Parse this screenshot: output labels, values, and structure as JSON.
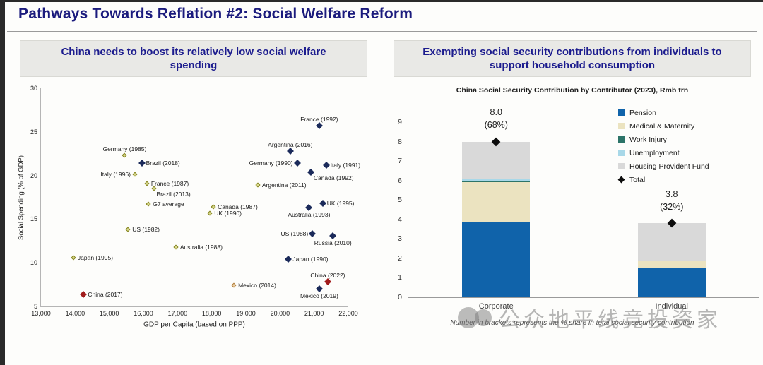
{
  "slide": {
    "title": "Pathways Towards Reflation #2: Social Welfare Reform",
    "footnote": "Number in brackets represents the % share in total social security contribution",
    "watermark": "公众地平线竞投资家"
  },
  "panels": {
    "left": {
      "header": "China needs to boost its relatively low social welfare spending"
    },
    "right": {
      "header": "Exempting social security contributions from individuals to support household consumption"
    }
  },
  "colors": {
    "title_navy": "#1b1b7d",
    "header_bg": "#e9e9e6",
    "pension_blue": "#1063aa",
    "medical_cream": "#ebe3c0",
    "work_injury_green": "#2c7468",
    "unemployment_blue": "#a8d8e8",
    "housing_gray": "#d9d9d9",
    "total_black": "#0d0d0d",
    "olive_marker": "#83831f",
    "navy_marker": "#1b2a5a",
    "red_marker": "#a11c1c",
    "tan_marker": "#ad7a35"
  },
  "chart_data": [
    {
      "type": "scatter",
      "xlabel": "GDP per Capita (based on PPP)",
      "ylabel": "Social Spending (% of GDP)",
      "xlim": [
        13000,
        22000
      ],
      "ylim": [
        5,
        30
      ],
      "xticks": [
        "13,000",
        "14,000",
        "15,000",
        "16,000",
        "17,000",
        "18,000",
        "19,000",
        "20,000",
        "21,000",
        "22,000"
      ],
      "yticks": [
        5,
        10,
        15,
        20,
        25,
        30
      ],
      "grid": false,
      "groups": [
        {
          "name": "earlier-period",
          "style": "olive",
          "points": [
            {
              "label": "Germany (1985)",
              "x": 15450,
              "y": 22.3,
              "pos": "above"
            },
            {
              "label": "Italy (1996)",
              "x": 15750,
              "y": 20.1,
              "pos": "left"
            },
            {
              "label": "France (1987)",
              "x": 16100,
              "y": 19.1,
              "pos": "right"
            },
            {
              "label": "Brazil (2013)",
              "x": 16300,
              "y": 18.5,
              "pos": "below-right"
            },
            {
              "label": "G7 average",
              "x": 16150,
              "y": 16.7,
              "pos": "right"
            },
            {
              "label": "US (1982)",
              "x": 15550,
              "y": 13.8,
              "pos": "right"
            },
            {
              "label": "Japan (1995)",
              "x": 13950,
              "y": 10.6,
              "pos": "right"
            },
            {
              "label": "Canada (1987)",
              "x": 18050,
              "y": 16.4,
              "pos": "right"
            },
            {
              "label": "UK (1990)",
              "x": 17950,
              "y": 15.7,
              "pos": "right"
            },
            {
              "label": "Australia (1988)",
              "x": 16950,
              "y": 11.8,
              "pos": "right"
            },
            {
              "label": "Argentina (2011)",
              "x": 19350,
              "y": 18.9,
              "pos": "right"
            }
          ]
        },
        {
          "name": "later-period",
          "style": "navy",
          "points": [
            {
              "label": "Brazil (2018)",
              "x": 15950,
              "y": 21.4,
              "pos": "right"
            },
            {
              "label": "France (1992)",
              "x": 21150,
              "y": 25.7,
              "pos": "above"
            },
            {
              "label": "Argentina (2016)",
              "x": 20300,
              "y": 22.8,
              "pos": "above"
            },
            {
              "label": "Germany (1990)",
              "x": 20500,
              "y": 21.4,
              "pos": "left"
            },
            {
              "label": "Italy (1991)",
              "x": 21350,
              "y": 21.2,
              "pos": "right"
            },
            {
              "label": "Canada (1992)",
              "x": 20900,
              "y": 20.4,
              "pos": "below-right"
            },
            {
              "label": "UK (1995)",
              "x": 21250,
              "y": 16.8,
              "pos": "right"
            },
            {
              "label": "Australia (1993)",
              "x": 20850,
              "y": 16.3,
              "pos": "below"
            },
            {
              "label": "US (1988)",
              "x": 20950,
              "y": 13.3,
              "pos": "left"
            },
            {
              "label": "Russia (2010)",
              "x": 21550,
              "y": 13.1,
              "pos": "below"
            },
            {
              "label": "Japan (1990)",
              "x": 20250,
              "y": 10.4,
              "pos": "right"
            },
            {
              "label": "Mexico (2019)",
              "x": 21150,
              "y": 7.0,
              "pos": "below"
            }
          ]
        },
        {
          "name": "china",
          "style": "red",
          "points": [
            {
              "label": "China (2017)",
              "x": 14250,
              "y": 6.4,
              "pos": "right"
            },
            {
              "label": "China (2022)",
              "x": 21400,
              "y": 7.8,
              "pos": "above"
            }
          ]
        },
        {
          "name": "mexico-earlier",
          "style": "tan",
          "points": [
            {
              "label": "Mexico (2014)",
              "x": 18650,
              "y": 7.4,
              "pos": "right"
            }
          ]
        }
      ]
    },
    {
      "type": "bar",
      "stacked": true,
      "title": "China Social Security Contribution by Contributor (2023), Rmb trn",
      "categories": [
        "Corporate",
        "Individual"
      ],
      "series": [
        {
          "name": "Pension",
          "color": "#1063aa",
          "values": [
            3.9,
            1.5
          ]
        },
        {
          "name": "Medical & Maternity",
          "color": "#ebe3c0",
          "values": [
            2.0,
            0.4
          ]
        },
        {
          "name": "Work Injury",
          "color": "#2c7468",
          "values": [
            0.1,
            0.0
          ]
        },
        {
          "name": "Unemployment",
          "color": "#a8d8e8",
          "values": [
            0.1,
            0.0
          ]
        },
        {
          "name": "Housing Provident Fund",
          "color": "#d9d9d9",
          "values": [
            1.9,
            1.9
          ]
        }
      ],
      "totals": [
        {
          "value": "8.0",
          "pct": "(68%)",
          "y": 8.0
        },
        {
          "value": "3.8",
          "pct": "(32%)",
          "y": 3.8
        }
      ],
      "total_label": "Total",
      "ylim": [
        0,
        9
      ],
      "yticks": [
        0,
        1,
        2,
        3,
        4,
        5,
        6,
        7,
        8,
        9
      ],
      "legend_position": "right",
      "grid": false
    }
  ]
}
